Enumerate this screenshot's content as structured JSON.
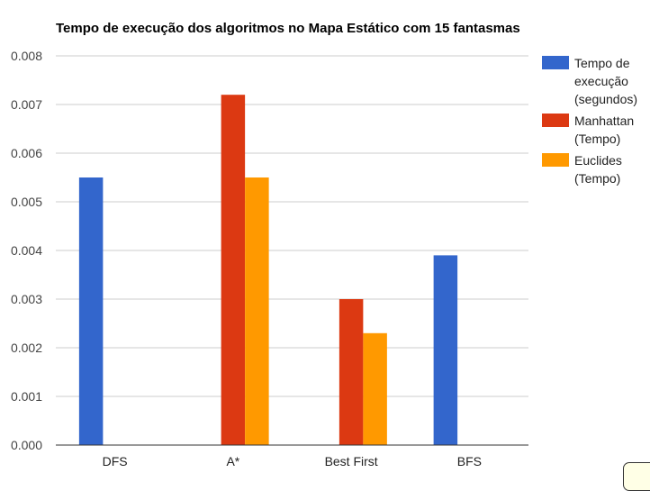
{
  "chart_data": {
    "type": "bar",
    "title": "Tempo de execução dos algoritmos no Mapa Estático com 15 fantasmas",
    "categories": [
      "DFS",
      "A*",
      "Best First",
      "BFS"
    ],
    "series": [
      {
        "name": "Tempo de execução (segundos)",
        "legend_lines": [
          "Tempo de",
          "execução",
          "(segundos)"
        ],
        "color": "#3366cc",
        "values": [
          0.0055,
          null,
          null,
          0.0039
        ]
      },
      {
        "name": "Manhattan (Tempo)",
        "legend_lines": [
          "Manhattan",
          "(Tempo)"
        ],
        "color": "#dc3912",
        "values": [
          null,
          0.0072,
          0.003,
          null
        ]
      },
      {
        "name": "Euclides (Tempo)",
        "legend_lines": [
          "Euclides",
          "(Tempo)"
        ],
        "color": "#ff9900",
        "values": [
          null,
          0.0055,
          0.0023,
          null
        ]
      }
    ],
    "yticks": [
      "0.000",
      "0.001",
      "0.002",
      "0.003",
      "0.004",
      "0.005",
      "0.006",
      "0.007",
      "0.008"
    ],
    "ylim": [
      0,
      0.008
    ],
    "xlabel": "",
    "ylabel": "",
    "grid": true,
    "legend_position": "right"
  }
}
